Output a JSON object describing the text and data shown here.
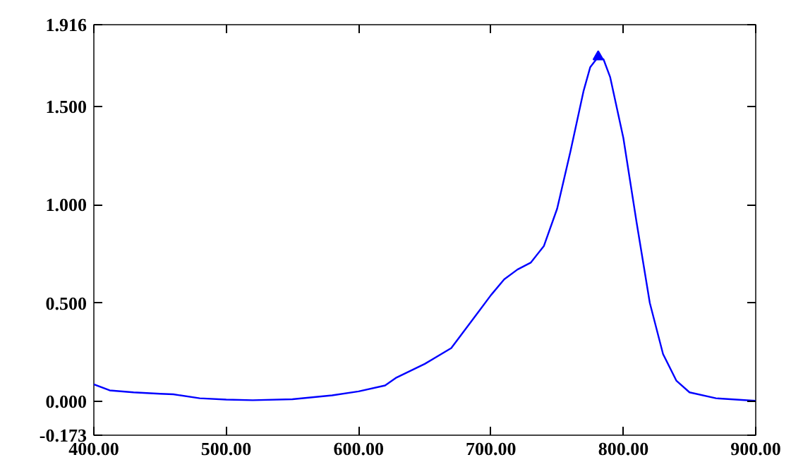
{
  "chart_data": {
    "type": "line",
    "xlim": [
      400,
      900
    ],
    "ylim": [
      -0.173,
      1.916
    ],
    "xticks": [
      {
        "value": 400,
        "label": "400.00"
      },
      {
        "value": 500,
        "label": "500.00"
      },
      {
        "value": 600,
        "label": "600.00"
      },
      {
        "value": 700,
        "label": "700.00"
      },
      {
        "value": 800,
        "label": "800.00"
      },
      {
        "value": 900,
        "label": "900.00"
      }
    ],
    "yticks": [
      {
        "value": -0.173,
        "label": "-0.173"
      },
      {
        "value": 0,
        "label": "0.000"
      },
      {
        "value": 0.5,
        "label": "0.500"
      },
      {
        "value": 1,
        "label": "1.000"
      },
      {
        "value": 1.5,
        "label": "1.500"
      },
      {
        "value": 1.916,
        "label": "1.916"
      }
    ],
    "grid": false,
    "series": [
      {
        "color": "#0000ff",
        "x": [
          400,
          412,
          430,
          450,
          460,
          480,
          500,
          520,
          550,
          580,
          600,
          620,
          628,
          650,
          670,
          690,
          700,
          710,
          720,
          730,
          740,
          750,
          760,
          770,
          775,
          781,
          785,
          790,
          800,
          810,
          820,
          830,
          840,
          850,
          870,
          900
        ],
        "values": [
          0.086,
          0.055,
          0.045,
          0.038,
          0.035,
          0.015,
          0.008,
          0.005,
          0.01,
          0.03,
          0.05,
          0.08,
          0.118,
          0.19,
          0.27,
          0.45,
          0.54,
          0.62,
          0.67,
          0.705,
          0.79,
          0.98,
          1.27,
          1.58,
          1.7,
          1.753,
          1.74,
          1.65,
          1.34,
          0.91,
          0.5,
          0.24,
          0.105,
          0.045,
          0.015,
          0.002
        ]
      },
      {
        "type": "scatter",
        "color": "#0000ff",
        "marker": "triangle",
        "x": [
          781
        ],
        "values": [
          1.753
        ]
      }
    ]
  }
}
